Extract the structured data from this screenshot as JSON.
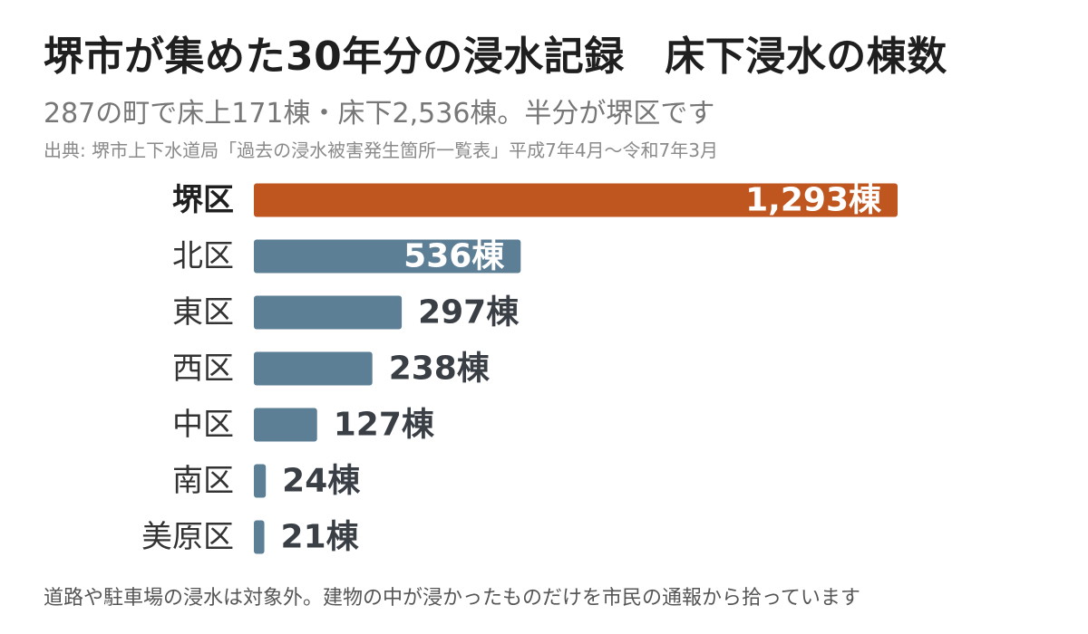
{
  "header": {
    "title": "堺市が集めた30年分の浸水記録　床下浸水の棟数",
    "subtitle": "287の町で床上171棟・床下2,536棟。半分が堺区です",
    "source": "出典: 堺市上下水道局「過去の浸水被害発生箇所一覧表」平成7年4月～令和7年3月"
  },
  "footer": {
    "note": "道路や駐車場の浸水は対象外。建物の中が浸かったものだけを市民の通報から拾っています"
  },
  "colors": {
    "highlight": "#c0561f",
    "bar": "#5d7f96",
    "label_highlight": "#1f1f1f",
    "label": "#333333",
    "value_inside": "#ffffff",
    "value_outside": "#3a3f46"
  },
  "chart_data": {
    "type": "bar",
    "orientation": "horizontal",
    "categories": [
      "堺区",
      "北区",
      "東区",
      "西区",
      "中区",
      "南区",
      "美原区"
    ],
    "values": [
      1293,
      536,
      297,
      238,
      127,
      24,
      21
    ],
    "value_labels": [
      "1,293棟",
      "536棟",
      "297棟",
      "238棟",
      "127棟",
      "24棟",
      "21棟"
    ],
    "highlight": "堺区",
    "unit": "棟"
  }
}
